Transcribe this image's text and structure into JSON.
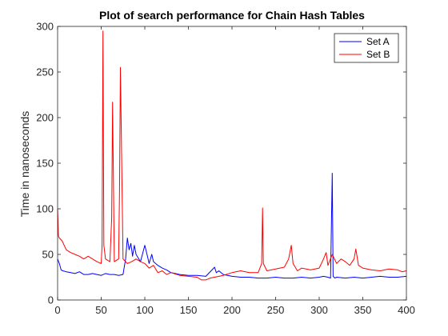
{
  "chart_data": {
    "type": "line",
    "title": "Plot of search performance for Chain Hash Tables",
    "xlabel": "",
    "ylabel": "Time in nanoseconds",
    "xlim": [
      0,
      400
    ],
    "ylim": [
      0,
      300
    ],
    "xticks": [
      0,
      50,
      100,
      150,
      200,
      250,
      300,
      350,
      400
    ],
    "yticks": [
      0,
      50,
      100,
      150,
      200,
      250,
      300
    ],
    "xtick_labels": [
      "0",
      "50",
      "100",
      "150",
      "200",
      "250",
      "300",
      "350",
      "400"
    ],
    "ytick_labels": [
      "0",
      "50",
      "100",
      "150",
      "200",
      "250",
      "300"
    ],
    "grid": false,
    "legend_position": "top-right",
    "series": [
      {
        "name": "Set A",
        "color": "#0000ff",
        "x": [
          0,
          2,
          4,
          6,
          10,
          15,
          20,
          25,
          30,
          35,
          40,
          45,
          50,
          55,
          60,
          65,
          70,
          75,
          78,
          80,
          82,
          84,
          86,
          88,
          90,
          95,
          100,
          103,
          105,
          108,
          110,
          115,
          120,
          125,
          130,
          135,
          140,
          150,
          160,
          170,
          180,
          182,
          185,
          190,
          195,
          200,
          210,
          220,
          230,
          240,
          250,
          260,
          270,
          280,
          290,
          300,
          305,
          310,
          313,
          315,
          316,
          318,
          320,
          330,
          340,
          350,
          360,
          370,
          380,
          390,
          400
        ],
        "y": [
          45,
          40,
          33,
          32,
          31,
          30,
          29,
          31,
          28,
          28,
          29,
          28,
          27,
          29,
          28,
          28,
          27,
          28,
          45,
          68,
          55,
          62,
          48,
          60,
          50,
          42,
          60,
          48,
          40,
          50,
          42,
          38,
          35,
          33,
          30,
          29,
          28,
          27,
          27,
          26,
          36,
          30,
          32,
          28,
          27,
          26,
          25,
          25,
          24,
          24,
          25,
          24,
          24,
          25,
          24,
          25,
          26,
          25,
          24,
          139,
          26,
          24,
          25,
          24,
          25,
          24,
          25,
          26,
          25,
          25,
          26
        ]
      },
      {
        "name": "Set B",
        "color": "#ff0000",
        "x": [
          0,
          1,
          2,
          5,
          10,
          15,
          20,
          25,
          30,
          35,
          40,
          45,
          50,
          51,
          52,
          53,
          55,
          60,
          62,
          63,
          65,
          70,
          71,
          72,
          75,
          80,
          85,
          90,
          95,
          100,
          105,
          110,
          115,
          120,
          125,
          130,
          140,
          150,
          160,
          165,
          170,
          175,
          180,
          190,
          200,
          210,
          220,
          230,
          234,
          235,
          236,
          240,
          250,
          260,
          265,
          268,
          270,
          275,
          280,
          290,
          300,
          305,
          308,
          310,
          315,
          320,
          325,
          330,
          335,
          340,
          342,
          345,
          350,
          360,
          370,
          380,
          390,
          395,
          400
        ],
        "y": [
          100,
          70,
          68,
          65,
          55,
          52,
          50,
          48,
          45,
          48,
          45,
          42,
          40,
          60,
          295,
          60,
          45,
          42,
          90,
          217,
          42,
          45,
          120,
          255,
          45,
          40,
          42,
          45,
          42,
          40,
          35,
          38,
          30,
          32,
          28,
          30,
          27,
          26,
          25,
          22,
          22,
          24,
          25,
          27,
          30,
          32,
          30,
          30,
          40,
          101,
          40,
          32,
          34,
          36,
          45,
          60,
          40,
          32,
          35,
          33,
          35,
          45,
          52,
          38,
          50,
          40,
          45,
          42,
          38,
          45,
          56,
          38,
          35,
          33,
          32,
          34,
          33,
          31,
          32
        ]
      }
    ]
  }
}
